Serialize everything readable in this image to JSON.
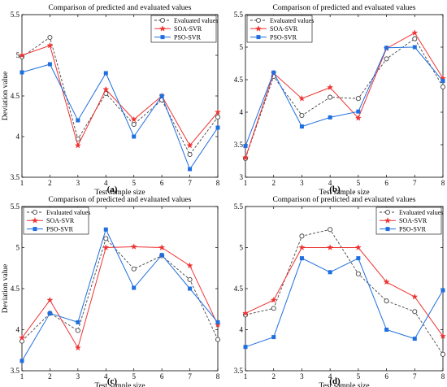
{
  "colors": {
    "evaluated": "#444444",
    "soa": "#ee3333",
    "pso": "#1f6fe0"
  },
  "chart_data": [
    {
      "type": "line",
      "panel_label": "(a)",
      "title": "Comparison of predicted and evaluated values",
      "xlabel": "Test sample size",
      "ylabel": "Deviation value",
      "x": [
        1,
        2,
        3,
        4,
        5,
        6,
        7,
        8
      ],
      "xlim": [
        1,
        8
      ],
      "ylim": [
        3.5,
        5.5
      ],
      "yticks": [
        "3.5",
        "4",
        "4.5",
        "5",
        "5.5"
      ],
      "xticks": [
        "1",
        "2",
        "3",
        "4",
        "5",
        "6",
        "7",
        "8"
      ],
      "legend_position": "top-right",
      "series": [
        {
          "name": "Evaluated values",
          "values": [
            4.98,
            5.22,
            3.97,
            4.53,
            4.15,
            4.45,
            3.78,
            4.24
          ]
        },
        {
          "name": "SOA-SVR",
          "values": [
            5.0,
            5.12,
            3.89,
            4.58,
            4.21,
            4.5,
            3.89,
            4.3
          ]
        },
        {
          "name": "PSO-SVR",
          "values": [
            4.79,
            4.89,
            4.2,
            4.78,
            4.0,
            4.5,
            3.6,
            4.11
          ]
        }
      ]
    },
    {
      "type": "line",
      "panel_label": "(b)",
      "title": "Comparison of predicted and evaluated values",
      "xlabel": "Test sample size",
      "ylabel": "",
      "x": [
        1,
        2,
        3,
        4,
        5,
        6,
        7,
        8
      ],
      "xlim": [
        1,
        8
      ],
      "ylim": [
        3,
        5.5
      ],
      "yticks": [
        "3",
        "3.5",
        "4",
        "4.5",
        "5",
        "5.5"
      ],
      "xticks": [
        "1",
        "2",
        "3",
        "4",
        "5",
        "6",
        "7",
        "8"
      ],
      "legend_position": "top-left",
      "series": [
        {
          "name": "Evaluated values",
          "values": [
            3.29,
            4.55,
            3.95,
            4.23,
            4.21,
            4.82,
            5.13,
            4.39
          ]
        },
        {
          "name": "SOA-SVR",
          "values": [
            3.3,
            4.6,
            4.21,
            4.38,
            3.91,
            4.98,
            5.22,
            4.52
          ]
        },
        {
          "name": "PSO-SVR",
          "values": [
            3.48,
            4.61,
            3.78,
            3.92,
            4.01,
            4.99,
            5.0,
            4.48
          ]
        }
      ]
    },
    {
      "type": "line",
      "panel_label": "(c)",
      "title": "Comparison of predicted and evaluated values",
      "xlabel": "Test sample size",
      "ylabel": "Deviation value",
      "x": [
        1,
        2,
        3,
        4,
        5,
        6,
        7,
        8
      ],
      "xlim": [
        1,
        8
      ],
      "ylim": [
        3.5,
        5.5
      ],
      "yticks": [
        "3.5",
        "4",
        "4.5",
        "5",
        "5.5"
      ],
      "xticks": [
        "1",
        "2",
        "3",
        "4",
        "5",
        "6",
        "7",
        "8"
      ],
      "legend_position": "top-left",
      "series": [
        {
          "name": "Evaluated values",
          "values": [
            3.86,
            4.2,
            3.99,
            5.11,
            4.74,
            4.9,
            4.61,
            3.88
          ]
        },
        {
          "name": "SOA-SVR",
          "values": [
            3.9,
            4.36,
            3.78,
            5.0,
            5.01,
            5.0,
            4.78,
            4.06
          ]
        },
        {
          "name": "PSO-SVR",
          "values": [
            3.62,
            4.2,
            4.09,
            5.22,
            4.51,
            4.91,
            4.5,
            4.09
          ]
        }
      ]
    },
    {
      "type": "line",
      "panel_label": "(d)",
      "title": "Comparison of predicted and evaluated values",
      "xlabel": "Test sample size",
      "ylabel": "",
      "x": [
        1,
        2,
        3,
        4,
        5,
        6,
        7,
        8
      ],
      "xlim": [
        1,
        8
      ],
      "ylim": [
        3.5,
        5.5
      ],
      "yticks": [
        "3.5",
        "4",
        "4.5",
        "5",
        "5.5"
      ],
      "xticks": [
        "1",
        "2",
        "3",
        "4",
        "5",
        "6",
        "7",
        "8"
      ],
      "legend_position": "top-right",
      "series": [
        {
          "name": "Evaluated values",
          "values": [
            4.18,
            4.26,
            5.14,
            5.22,
            4.68,
            4.35,
            4.22,
            3.7
          ]
        },
        {
          "name": "SOA-SVR",
          "values": [
            4.2,
            4.36,
            5.0,
            5.0,
            5.0,
            4.58,
            4.4,
            3.92
          ]
        },
        {
          "name": "PSO-SVR",
          "values": [
            3.79,
            3.91,
            4.87,
            4.7,
            4.87,
            4.0,
            3.89,
            4.48
          ]
        }
      ]
    }
  ]
}
